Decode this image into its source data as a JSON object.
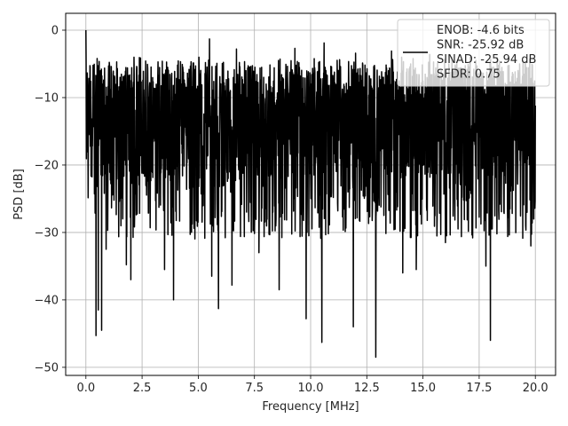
{
  "chart_data": {
    "type": "line",
    "title": "",
    "xlabel": "Frequency [MHz]",
    "ylabel": "PSD [dB]",
    "xlim": [
      -0.9,
      20.9
    ],
    "ylim": [
      -51.2,
      2.5
    ],
    "xticks": [
      0.0,
      2.5,
      5.0,
      7.5,
      10.0,
      12.5,
      15.0,
      17.5,
      20.0
    ],
    "xtick_labels": [
      "0.0",
      "2.5",
      "5.0",
      "7.5",
      "10.0",
      "12.5",
      "15.0",
      "17.5",
      "20.0"
    ],
    "yticks": [
      0,
      -10,
      -20,
      -30,
      -40,
      -50
    ],
    "ytick_labels": [
      "0",
      "−10",
      "−20",
      "−30",
      "−40",
      "−50"
    ],
    "grid": true,
    "legend_position": "top-right",
    "series": [
      {
        "name": "ENOB: -4.6 bits",
        "color": "#000000",
        "noise_floor_top_db": -5,
        "noise_floor_bottom_db": -22,
        "peaks": [
          {
            "x": 0.0,
            "y": 0.0
          },
          {
            "x": 0.5,
            "y": -4.2
          },
          {
            "x": 3.4,
            "y": -4.6
          },
          {
            "x": 5.5,
            "y": -1.3
          },
          {
            "x": 6.7,
            "y": -2.8
          },
          {
            "x": 7.7,
            "y": -1.2
          },
          {
            "x": 9.3,
            "y": -2.7
          },
          {
            "x": 10.6,
            "y": -1.9
          },
          {
            "x": 12.0,
            "y": -3.4
          },
          {
            "x": 13.6,
            "y": -3.1
          },
          {
            "x": 15.3,
            "y": -3.6
          },
          {
            "x": 17.1,
            "y": -4.0
          },
          {
            "x": 19.3,
            "y": -5.0
          }
        ],
        "dips": [
          {
            "x": 0.45,
            "y": -45.3
          },
          {
            "x": 0.55,
            "y": -41.5
          },
          {
            "x": 0.7,
            "y": -44.5
          },
          {
            "x": 0.9,
            "y": -32.5
          },
          {
            "x": 1.8,
            "y": -34.8
          },
          {
            "x": 2.0,
            "y": -37.0
          },
          {
            "x": 3.5,
            "y": -35.5
          },
          {
            "x": 3.9,
            "y": -40.0
          },
          {
            "x": 5.6,
            "y": -36.5
          },
          {
            "x": 5.9,
            "y": -41.3
          },
          {
            "x": 6.5,
            "y": -37.8
          },
          {
            "x": 7.7,
            "y": -33.0
          },
          {
            "x": 8.6,
            "y": -38.5
          },
          {
            "x": 9.8,
            "y": -42.8
          },
          {
            "x": 10.5,
            "y": -46.3
          },
          {
            "x": 11.9,
            "y": -44.0
          },
          {
            "x": 12.9,
            "y": -48.5
          },
          {
            "x": 14.1,
            "y": -36.0
          },
          {
            "x": 14.7,
            "y": -35.5
          },
          {
            "x": 16.0,
            "y": -31.5
          },
          {
            "x": 17.8,
            "y": -35.0
          },
          {
            "x": 18.0,
            "y": -46.0
          },
          {
            "x": 19.8,
            "y": -32.0
          }
        ]
      }
    ],
    "legend": {
      "lines": [
        "ENOB: -4.6 bits",
        "SNR: -25.92 dB",
        "SINAD: -25.94 dB",
        "SFDR: 0.75"
      ]
    }
  }
}
